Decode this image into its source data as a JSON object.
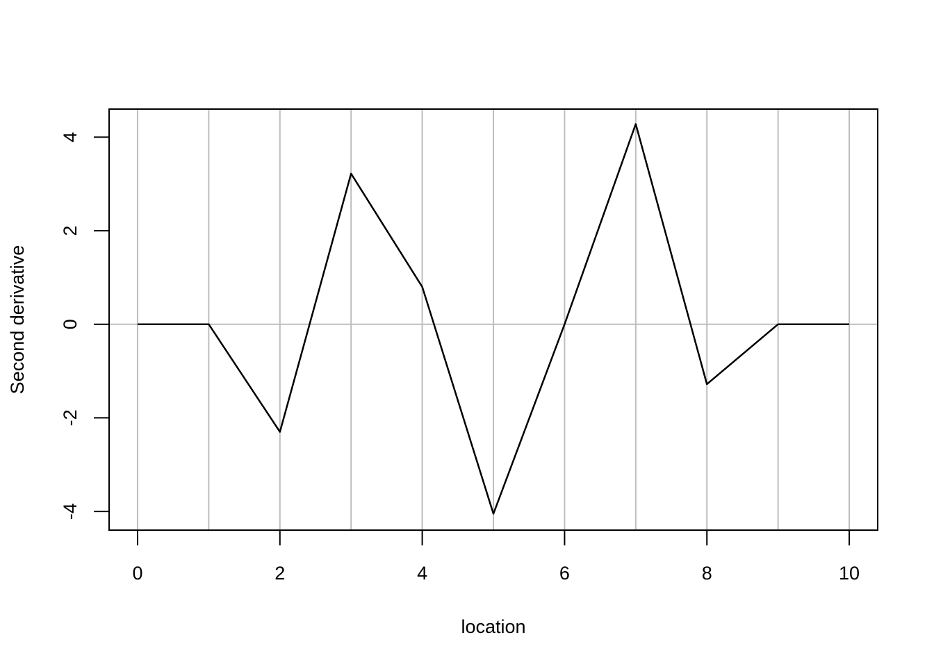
{
  "chart_data": {
    "type": "line",
    "title": "",
    "xlabel": "location",
    "ylabel": "Second derivative",
    "xlim": [
      -0.4,
      10.4
    ],
    "ylim": [
      -4.4,
      4.6
    ],
    "x_ticks": [
      0,
      2,
      4,
      6,
      8,
      10
    ],
    "y_ticks": [
      -4,
      -2,
      0,
      2,
      4
    ],
    "x_tick_labels": [
      "0",
      "2",
      "4",
      "6",
      "8",
      "10"
    ],
    "y_tick_labels": [
      "-4",
      "-2",
      "0",
      "2",
      "4"
    ],
    "grid": {
      "vertical_at": [
        0,
        1,
        2,
        3,
        4,
        5,
        6,
        7,
        8,
        9,
        10
      ],
      "horizontal_at": [
        0
      ],
      "color": "#bebebe"
    },
    "series": [
      {
        "color": "#000000",
        "x": [
          0,
          1,
          2,
          3,
          4,
          5,
          6,
          7,
          8,
          9,
          10
        ],
        "y": [
          0,
          0,
          -2.3,
          3.22,
          0.8,
          -4.05,
          0.0,
          4.28,
          -1.28,
          0,
          0
        ]
      }
    ],
    "legend": "none"
  }
}
